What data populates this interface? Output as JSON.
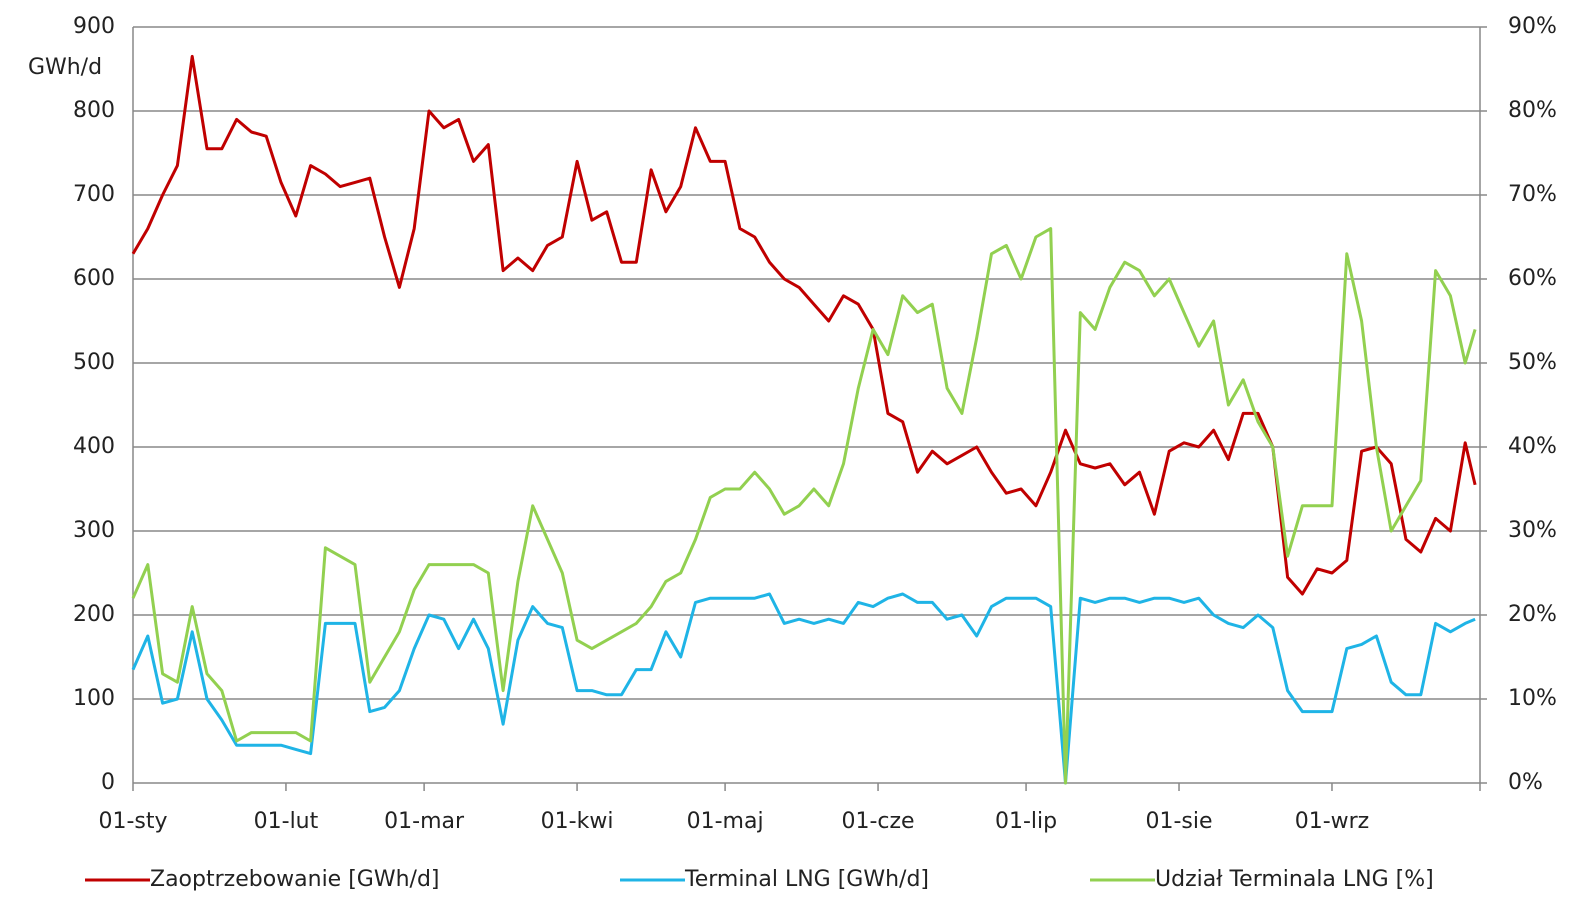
{
  "chart_data": {
    "type": "line",
    "y_label": "GWh/d",
    "x": [
      0,
      3,
      6,
      9,
      12,
      15,
      18,
      21,
      24,
      27,
      30,
      33,
      36,
      39,
      42,
      45,
      48,
      51,
      54,
      57,
      60,
      63,
      66,
      69,
      72,
      75,
      78,
      81,
      84,
      87,
      90,
      93,
      96,
      99,
      102,
      105,
      108,
      111,
      114,
      117,
      120,
      123,
      126,
      129,
      132,
      135,
      138,
      141,
      144,
      147,
      150,
      153,
      156,
      159,
      162,
      165,
      168,
      171,
      174,
      177,
      180,
      183,
      186,
      189,
      192,
      195,
      198,
      201,
      204,
      207,
      210,
      213,
      216,
      219,
      222,
      225,
      228,
      231,
      234,
      237,
      240,
      243,
      246,
      249,
      252,
      255,
      258,
      261,
      264,
      267,
      270,
      272
    ],
    "xlim": [
      0,
      273
    ],
    "xticks": [
      {
        "value": 0,
        "label": "01-sty"
      },
      {
        "value": 31,
        "label": "01-lut"
      },
      {
        "value": 59,
        "label": "01-mar"
      },
      {
        "value": 90,
        "label": "01-kwi"
      },
      {
        "value": 120,
        "label": "01-maj"
      },
      {
        "value": 151,
        "label": "01-cze"
      },
      {
        "value": 181,
        "label": "01-lip"
      },
      {
        "value": 212,
        "label": "01-sie"
      },
      {
        "value": 243,
        "label": "01-wrz"
      }
    ],
    "ylim": [
      0,
      900
    ],
    "yticks": [
      0,
      100,
      200,
      300,
      400,
      500,
      600,
      700,
      800,
      900
    ],
    "y2lim": [
      0,
      90
    ],
    "y2ticks": [
      {
        "value": 0,
        "label": "0%"
      },
      {
        "value": 10,
        "label": "10%"
      },
      {
        "value": 20,
        "label": "20%"
      },
      {
        "value": 30,
        "label": "30%"
      },
      {
        "value": 40,
        "label": "40%"
      },
      {
        "value": 50,
        "label": "50%"
      },
      {
        "value": 60,
        "label": "60%"
      },
      {
        "value": 70,
        "label": "70%"
      },
      {
        "value": 80,
        "label": "80%"
      },
      {
        "value": 90,
        "label": "90%"
      }
    ],
    "grid": true,
    "legend": "bottom",
    "series": [
      {
        "name": "Zaoptrzebowanie [GWh/d]",
        "color": "#c00000",
        "values": [
          630,
          660,
          700,
          735,
          865,
          755,
          755,
          790,
          775,
          770,
          715,
          675,
          735,
          725,
          710,
          715,
          720,
          650,
          590,
          660,
          800,
          780,
          790,
          740,
          760,
          610,
          625,
          610,
          640,
          650,
          740,
          670,
          680,
          620,
          620,
          730,
          680,
          710,
          780,
          740,
          740,
          660,
          650,
          620,
          600,
          590,
          570,
          550,
          580,
          570,
          540,
          440,
          430,
          370,
          395,
          380,
          390,
          400,
          370,
          345,
          350,
          330,
          370,
          420,
          380,
          375,
          380,
          355,
          370,
          320,
          395,
          405,
          400,
          420,
          385,
          440,
          440,
          400,
          245,
          225,
          255,
          250,
          265,
          395,
          400,
          380,
          290,
          275,
          315,
          300,
          405,
          355
        ]
      },
      {
        "name": "Terminal LNG [GWh/d]",
        "color": "#1fb4e6",
        "values": [
          135,
          175,
          95,
          100,
          180,
          100,
          75,
          45,
          45,
          45,
          45,
          40,
          35,
          190,
          190,
          190,
          85,
          90,
          110,
          160,
          200,
          195,
          160,
          195,
          160,
          70,
          170,
          210,
          190,
          185,
          110,
          110,
          105,
          105,
          135,
          135,
          180,
          150,
          215,
          220,
          220,
          220,
          220,
          225,
          190,
          195,
          190,
          195,
          190,
          215,
          210,
          220,
          225,
          215,
          215,
          195,
          200,
          175,
          210,
          220,
          220,
          220,
          210,
          0,
          220,
          215,
          220,
          220,
          215,
          220,
          220,
          215,
          220,
          200,
          190,
          185,
          200,
          185,
          110,
          85,
          85,
          85,
          160,
          165,
          175,
          120,
          105,
          105,
          190,
          180,
          190,
          195
        ]
      },
      {
        "name": "Udział Terminala LNG [%]",
        "color": "#92d050",
        "axis": "y2",
        "values": [
          22,
          26,
          13,
          12,
          21,
          13,
          11,
          5,
          6,
          6,
          6,
          6,
          5,
          28,
          27,
          26,
          12,
          15,
          18,
          23,
          26,
          26,
          26,
          26,
          25,
          11,
          24,
          33,
          29,
          25,
          17,
          16,
          17,
          18,
          19,
          21,
          24,
          25,
          29,
          34,
          35,
          35,
          37,
          35,
          32,
          33,
          35,
          33,
          38,
          47,
          54,
          51,
          58,
          56,
          57,
          47,
          44,
          53,
          63,
          64,
          60,
          65,
          66,
          0,
          56,
          54,
          59,
          62,
          61,
          58,
          60,
          56,
          52,
          55,
          45,
          48,
          43,
          40,
          27,
          33,
          33,
          33,
          63,
          55,
          40,
          30,
          33,
          36,
          61,
          58,
          50,
          54
        ]
      }
    ]
  }
}
